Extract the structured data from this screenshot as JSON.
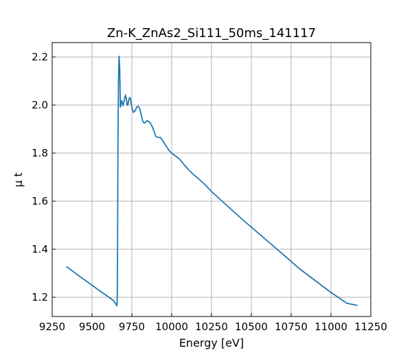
{
  "chart_data": {
    "type": "line",
    "title": "Zn-K_ZnAs2_Si111_50ms_141117",
    "xlabel": "Energy [eV]",
    "ylabel": "μ t",
    "xlim": [
      9250,
      11250
    ],
    "ylim": [
      1.12,
      2.26
    ],
    "xticks": [
      9250,
      9500,
      9750,
      10000,
      10250,
      10500,
      10750,
      11000,
      11250
    ],
    "yticks": [
      1.2,
      1.4,
      1.6,
      1.8,
      2.0,
      2.2
    ],
    "xtick_labels": [
      "9250",
      "9500",
      "9750",
      "10000",
      "10250",
      "10500",
      "10750",
      "11000",
      "11250"
    ],
    "ytick_labels": [
      "1.2",
      "1.4",
      "1.6",
      "1.8",
      "2.0",
      "2.2"
    ],
    "grid": true,
    "color": "#1f77b4",
    "series": [
      {
        "x": [
          9339,
          9400,
          9450,
          9500,
          9550,
          9600,
          9630,
          9645,
          9652,
          9655,
          9657,
          9659,
          9661,
          9663,
          9666,
          9670,
          9674,
          9678,
          9682,
          9686,
          9690,
          9695,
          9700,
          9705,
          9710,
          9715,
          9720,
          9725,
          9730,
          9735,
          9740,
          9745,
          9750,
          9760,
          9770,
          9780,
          9790,
          9800,
          9810,
          9820,
          9830,
          9845,
          9860,
          9875,
          9890,
          9900,
          9915,
          9930,
          9950,
          9970,
          9985,
          10000,
          10020,
          10050,
          10080,
          10100,
          10130,
          10165,
          10200,
          10250,
          10300,
          10350,
          10400,
          10450,
          10500,
          10600,
          10700,
          10800,
          10900,
          11000,
          11100,
          11166
        ],
        "y": [
          1.328,
          1.298,
          1.274,
          1.25,
          1.226,
          1.203,
          1.189,
          1.178,
          1.168,
          1.166,
          1.17,
          1.22,
          1.5,
          1.85,
          2.1,
          2.205,
          2.15,
          1.99,
          2.0,
          2.02,
          2.01,
          2.0,
          2.01,
          2.03,
          2.04,
          2.03,
          2.0,
          2.0,
          2.02,
          2.03,
          2.03,
          2.01,
          1.99,
          1.97,
          1.975,
          1.99,
          1.995,
          1.985,
          1.955,
          1.93,
          1.925,
          1.935,
          1.93,
          1.915,
          1.89,
          1.87,
          1.865,
          1.865,
          1.845,
          1.825,
          1.81,
          1.8,
          1.79,
          1.775,
          1.75,
          1.735,
          1.715,
          1.695,
          1.675,
          1.64,
          1.61,
          1.58,
          1.55,
          1.52,
          1.492,
          1.435,
          1.378,
          1.32,
          1.27,
          1.22,
          1.175,
          1.166
        ]
      }
    ]
  }
}
